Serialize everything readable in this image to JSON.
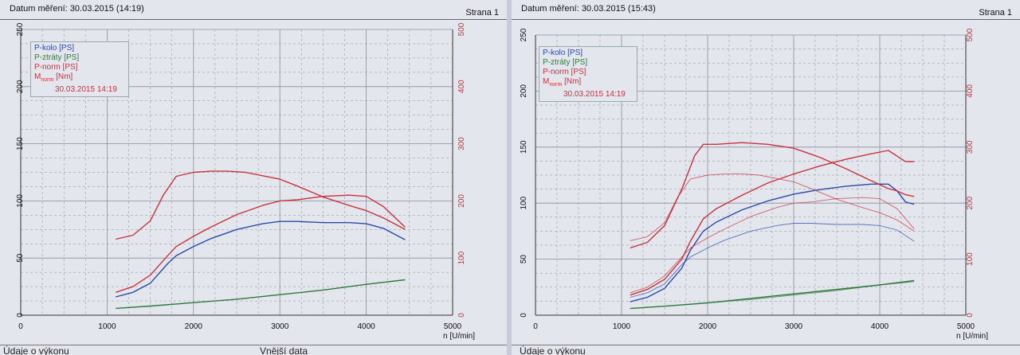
{
  "header_label": "Datum měření:",
  "page_label": "Strana 1",
  "footer": {
    "left": "Údaje o výkonu",
    "mid": "Vnější data"
  },
  "colors": {
    "kolo": "#2a4aa8",
    "ztraty": "#2f7a3a",
    "norm": "#c8323c",
    "mnorm": "#c8323c",
    "grid": "#8a8f9a"
  },
  "panels": [
    {
      "date": "30.03.2015 (14:19)",
      "legend": {
        "p_kolo": "P-kolo [PS]",
        "p_ztraty": "P-ztráty [PS]",
        "p_norm": "P-norm [PS]",
        "m_norm_main": "M",
        "m_norm_sub": "norm",
        "m_norm_unit": " [Nm]",
        "date": "30.03.2015 14:19"
      }
    },
    {
      "date": "30.03.2015 (15:43)",
      "legend": {
        "p_kolo": "P-kolo [PS]",
        "p_ztraty": "P-ztráty [PS]",
        "p_norm": "P-norm [PS]",
        "m_norm_main": "M",
        "m_norm_sub": "norm",
        "m_norm_unit": " [Nm]",
        "date": "30.03.2015 14:19"
      }
    }
  ],
  "chart_data": [
    {
      "type": "line",
      "xlabel": "n [U/min]",
      "xlim": [
        0,
        5000
      ],
      "ylim_left": [
        0,
        250
      ],
      "ylim_right": [
        0,
        500
      ],
      "xticks": [
        0,
        1000,
        2000,
        3000,
        4000,
        5000
      ],
      "yticks_left": [
        0,
        50,
        100,
        150,
        200,
        250
      ],
      "yticks_right": [
        0,
        100,
        200,
        300,
        400,
        500
      ],
      "grid": true,
      "legend_position": "top-left",
      "series": [
        {
          "name": "P-kolo [PS]",
          "axis": "left",
          "x": [
            1100,
            1300,
            1500,
            1700,
            1800,
            2000,
            2200,
            2500,
            2800,
            3000,
            3200,
            3500,
            3800,
            4000,
            4200,
            4450
          ],
          "y": [
            16,
            20,
            28,
            45,
            52,
            60,
            67,
            75,
            80,
            82,
            82,
            81,
            81,
            80,
            76,
            66
          ]
        },
        {
          "name": "P-ztráty [PS]",
          "axis": "left",
          "x": [
            1100,
            1500,
            2000,
            2500,
            3000,
            3500,
            4000,
            4450
          ],
          "y": [
            6,
            8,
            11,
            14,
            18,
            22,
            27,
            31
          ]
        },
        {
          "name": "P-norm [PS]",
          "axis": "left",
          "x": [
            1100,
            1300,
            1500,
            1700,
            1800,
            2000,
            2200,
            2500,
            2800,
            3000,
            3200,
            3500,
            3800,
            4000,
            4200,
            4450
          ],
          "y": [
            20,
            25,
            35,
            52,
            60,
            69,
            77,
            88,
            96,
            100,
            101,
            104,
            105,
            104,
            95,
            77
          ]
        },
        {
          "name": "Mnorm [Nm]",
          "axis": "right",
          "x": [
            1100,
            1300,
            1500,
            1650,
            1800,
            2000,
            2200,
            2400,
            2600,
            2800,
            3000,
            3200,
            3500,
            3800,
            4000,
            4200,
            4450
          ],
          "y": [
            133,
            140,
            165,
            210,
            243,
            250,
            252,
            252,
            250,
            244,
            238,
            226,
            207,
            192,
            183,
            170,
            150
          ]
        }
      ]
    },
    {
      "type": "line",
      "xlabel": "n [U/min]",
      "xlim": [
        0,
        5000
      ],
      "ylim_left": [
        0,
        250
      ],
      "ylim_right": [
        0,
        500
      ],
      "xticks": [
        0,
        1000,
        2000,
        3000,
        4000,
        5000
      ],
      "yticks_left": [
        0,
        50,
        100,
        150,
        200,
        250
      ],
      "yticks_right": [
        0,
        100,
        200,
        300,
        400,
        500
      ],
      "grid": true,
      "legend_position": "top-left",
      "series": [
        {
          "name": "P-kolo [PS]",
          "axis": "left",
          "x": [
            1100,
            1300,
            1500,
            1700,
            1800,
            1950,
            2100,
            2400,
            2700,
            3000,
            3300,
            3600,
            3900,
            4100,
            4200,
            4300,
            4400
          ],
          "y": [
            12,
            16,
            24,
            42,
            58,
            75,
            83,
            94,
            102,
            108,
            112,
            115,
            117,
            117,
            111,
            101,
            99
          ]
        },
        {
          "name": "P-ztráty [PS]",
          "axis": "left",
          "x": [
            1100,
            1500,
            2000,
            2500,
            3000,
            3500,
            4000,
            4400
          ],
          "y": [
            6,
            8,
            11,
            15,
            19,
            23,
            27,
            31
          ]
        },
        {
          "name": "P-norm [PS]",
          "axis": "left",
          "x": [
            1100,
            1300,
            1500,
            1700,
            1800,
            1950,
            2100,
            2400,
            2700,
            3000,
            3300,
            3600,
            3900,
            4100,
            4200,
            4300,
            4400
          ],
          "y": [
            18,
            23,
            32,
            50,
            66,
            86,
            95,
            107,
            118,
            126,
            133,
            139,
            144,
            147,
            142,
            137,
            137
          ]
        },
        {
          "name": "Mnorm [Nm]",
          "axis": "right",
          "x": [
            1100,
            1300,
            1500,
            1700,
            1850,
            1950,
            2100,
            2400,
            2700,
            3000,
            3300,
            3600,
            3900,
            4100,
            4200,
            4300,
            4400
          ],
          "y": [
            120,
            130,
            160,
            225,
            285,
            305,
            305,
            308,
            305,
            298,
            282,
            262,
            240,
            226,
            222,
            215,
            212
          ]
        },
        {
          "name": "P-kolo [PS] (14:19)",
          "axis": "left",
          "x": [
            1100,
            1300,
            1500,
            1700,
            1800,
            2000,
            2200,
            2500,
            2800,
            3000,
            3200,
            3500,
            3800,
            4000,
            4200,
            4400
          ],
          "y": [
            16,
            20,
            28,
            45,
            52,
            60,
            67,
            75,
            80,
            82,
            82,
            81,
            81,
            80,
            76,
            66
          ]
        },
        {
          "name": "P-ztráty [PS] (14:19)",
          "axis": "left",
          "x": [
            1100,
            1500,
            2000,
            2500,
            3000,
            3500,
            4000,
            4400
          ],
          "y": [
            6,
            8,
            11,
            14,
            18,
            22,
            27,
            30
          ]
        },
        {
          "name": "P-norm [PS] (14:19)",
          "axis": "left",
          "x": [
            1100,
            1300,
            1500,
            1700,
            1800,
            2000,
            2200,
            2500,
            2800,
            3000,
            3200,
            3500,
            3800,
            4000,
            4200,
            4400
          ],
          "y": [
            20,
            25,
            35,
            52,
            60,
            69,
            77,
            88,
            96,
            100,
            101,
            104,
            105,
            104,
            95,
            77
          ]
        },
        {
          "name": "Mnorm [Nm] (14:19)",
          "axis": "right",
          "x": [
            1100,
            1300,
            1500,
            1650,
            1800,
            2000,
            2200,
            2400,
            2600,
            2800,
            3000,
            3200,
            3500,
            3800,
            4000,
            4200,
            4400
          ],
          "y": [
            133,
            140,
            165,
            210,
            243,
            250,
            252,
            252,
            250,
            244,
            238,
            226,
            207,
            192,
            183,
            170,
            150
          ]
        }
      ]
    }
  ]
}
